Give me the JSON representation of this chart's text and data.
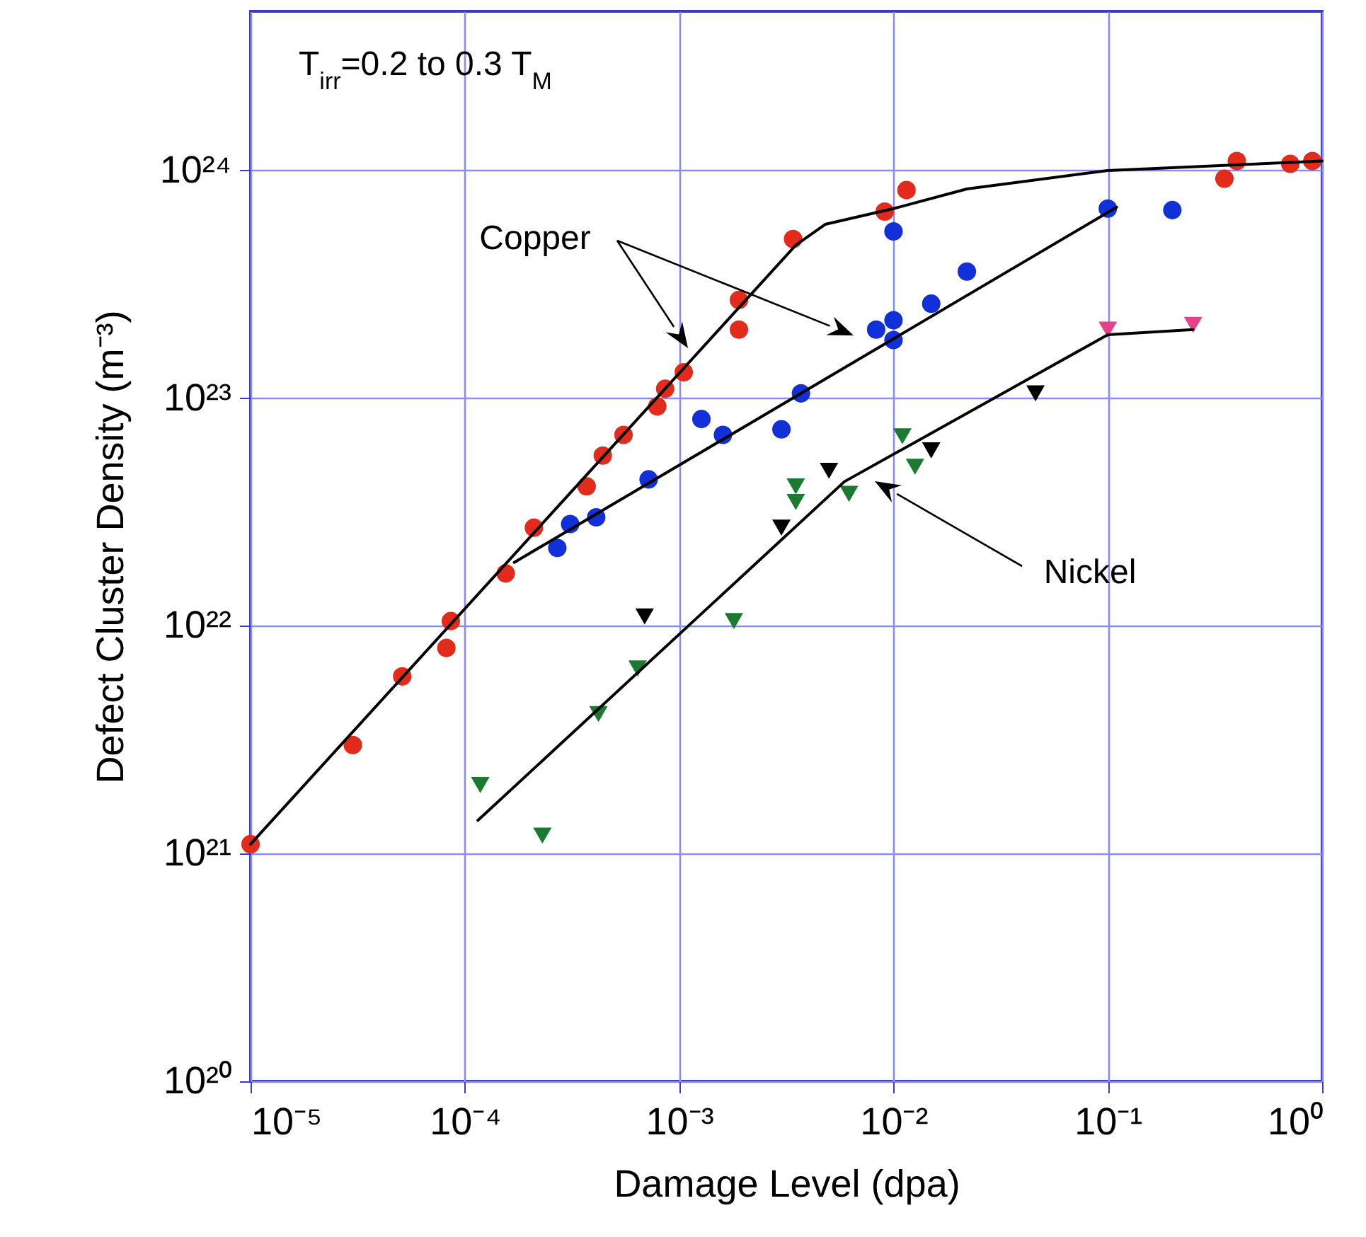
{
  "chart_data": {
    "type": "scatter",
    "xlabel": "Damage Level (dpa)",
    "ylabel": "Defect Cluster Density (m⁻³)",
    "log": "xy",
    "grid": true,
    "xlim": [
      1e-05,
      1
    ],
    "ylim": [
      1e+20,
      5e+24
    ],
    "xticks": [
      {
        "value": 1e-05,
        "label": "10⁻⁵"
      },
      {
        "value": 0.0001,
        "label": "10⁻⁴"
      },
      {
        "value": 0.001,
        "label": "10⁻³"
      },
      {
        "value": 0.01,
        "label": "10⁻²"
      },
      {
        "value": 0.1,
        "label": "10⁻¹"
      },
      {
        "value": 1,
        "label": "10⁰"
      }
    ],
    "yticks": [
      {
        "value": 1e+20,
        "label": "10²⁰"
      },
      {
        "value": 1e+21,
        "label": "10²¹"
      },
      {
        "value": 1e+22,
        "label": "10²²"
      },
      {
        "value": 1e+23,
        "label": "10²³"
      },
      {
        "value": 1e+24,
        "label": "10²⁴"
      }
    ],
    "annotations": [
      "T$_{irr}$=0.2 to 0.3 T$_{M}$",
      "Copper",
      "Nickel"
    ],
    "series": [
      {
        "color": "#e22b1b",
        "marker": "circle",
        "x": [
          1e-05,
          3e-05,
          5.1e-05,
          8.2e-05,
          8.6e-05,
          0.000155,
          0.00021,
          0.00037,
          0.00044,
          0.00055,
          0.00079,
          0.00086,
          0.00105,
          0.0019,
          0.0019,
          0.0034,
          0.0091,
          0.0115,
          0.35,
          0.4,
          0.71,
          0.9
        ],
        "values": [
          1.1e+21,
          3e+21,
          6e+21,
          8e+21,
          1.05e+22,
          1.7e+22,
          2.7e+22,
          4.1e+22,
          5.6e+22,
          6.9e+22,
          9.2e+22,
          1.1e+23,
          1.3e+23,
          2e+23,
          2.7e+23,
          5e+23,
          6.6e+23,
          8.2e+23,
          9.2e+23,
          1.1e+24,
          1.07e+24,
          1.1e+24
        ]
      },
      {
        "color": "#1230d8",
        "marker": "circle",
        "x": [
          0.00027,
          0.00031,
          0.00041,
          0.00072,
          0.00127,
          0.0016,
          0.003,
          0.0037,
          0.0083,
          0.01,
          0.01,
          0.01,
          0.015,
          0.022,
          0.1,
          0.2
        ],
        "values": [
          2.2e+22,
          2.8e+22,
          3e+22,
          4.4e+22,
          8.1e+22,
          6.9e+22,
          7.3e+22,
          1.05e+23,
          2e+23,
          2.2e+23,
          1.8e+23,
          5.4e+23,
          2.6e+23,
          3.6e+23,
          6.8e+23,
          6.7e+23
        ]
      },
      {
        "color": "#1a7a30",
        "marker": "triangle",
        "x": [
          0.000118,
          0.00023,
          0.00042,
          0.00064,
          0.0018,
          0.0035,
          0.0035,
          0.0062,
          0.011,
          0.0126
        ],
        "values": [
          2e+21,
          1.2e+21,
          4.1e+21,
          6.5e+21,
          1.05e+22,
          4.1e+22,
          3.5e+22,
          3.8e+22,
          6.8e+22,
          5e+22
        ]
      },
      {
        "color": "#000000",
        "marker": "triangle",
        "x": [
          0.00069,
          0.003,
          0.005,
          0.015,
          0.046
        ],
        "values": [
          1.1e+22,
          2.7e+22,
          4.8e+22,
          5.9e+22,
          1.05e+23
        ]
      },
      {
        "color": "#e8408a",
        "marker": "triangle",
        "x": [
          0.1,
          0.25
        ],
        "values": [
          2e+23,
          2.1e+23
        ]
      },
      {
        "type": "line",
        "color": "#000000",
        "marker": "none",
        "x": [
          1e-05,
          0.0035,
          0.0048,
          0.01,
          0.022,
          0.1,
          1
        ],
        "values": [
          1.1e+21,
          4.7e+23,
          5.8e+23,
          6.8e+23,
          8.3e+23,
          1e+24,
          1.1e+24
        ]
      },
      {
        "type": "line",
        "color": "#000000",
        "marker": "none",
        "x": [
          0.00017,
          0.11
        ],
        "values": [
          1.9e+22,
          6.9e+23
        ]
      },
      {
        "type": "line",
        "color": "#000000",
        "marker": "none",
        "x": [
          0.000115,
          0.0059,
          0.1,
          0.25
        ],
        "values": [
          1.4e+21,
          4.3e+22,
          1.9e+23,
          2e+23
        ]
      }
    ]
  }
}
